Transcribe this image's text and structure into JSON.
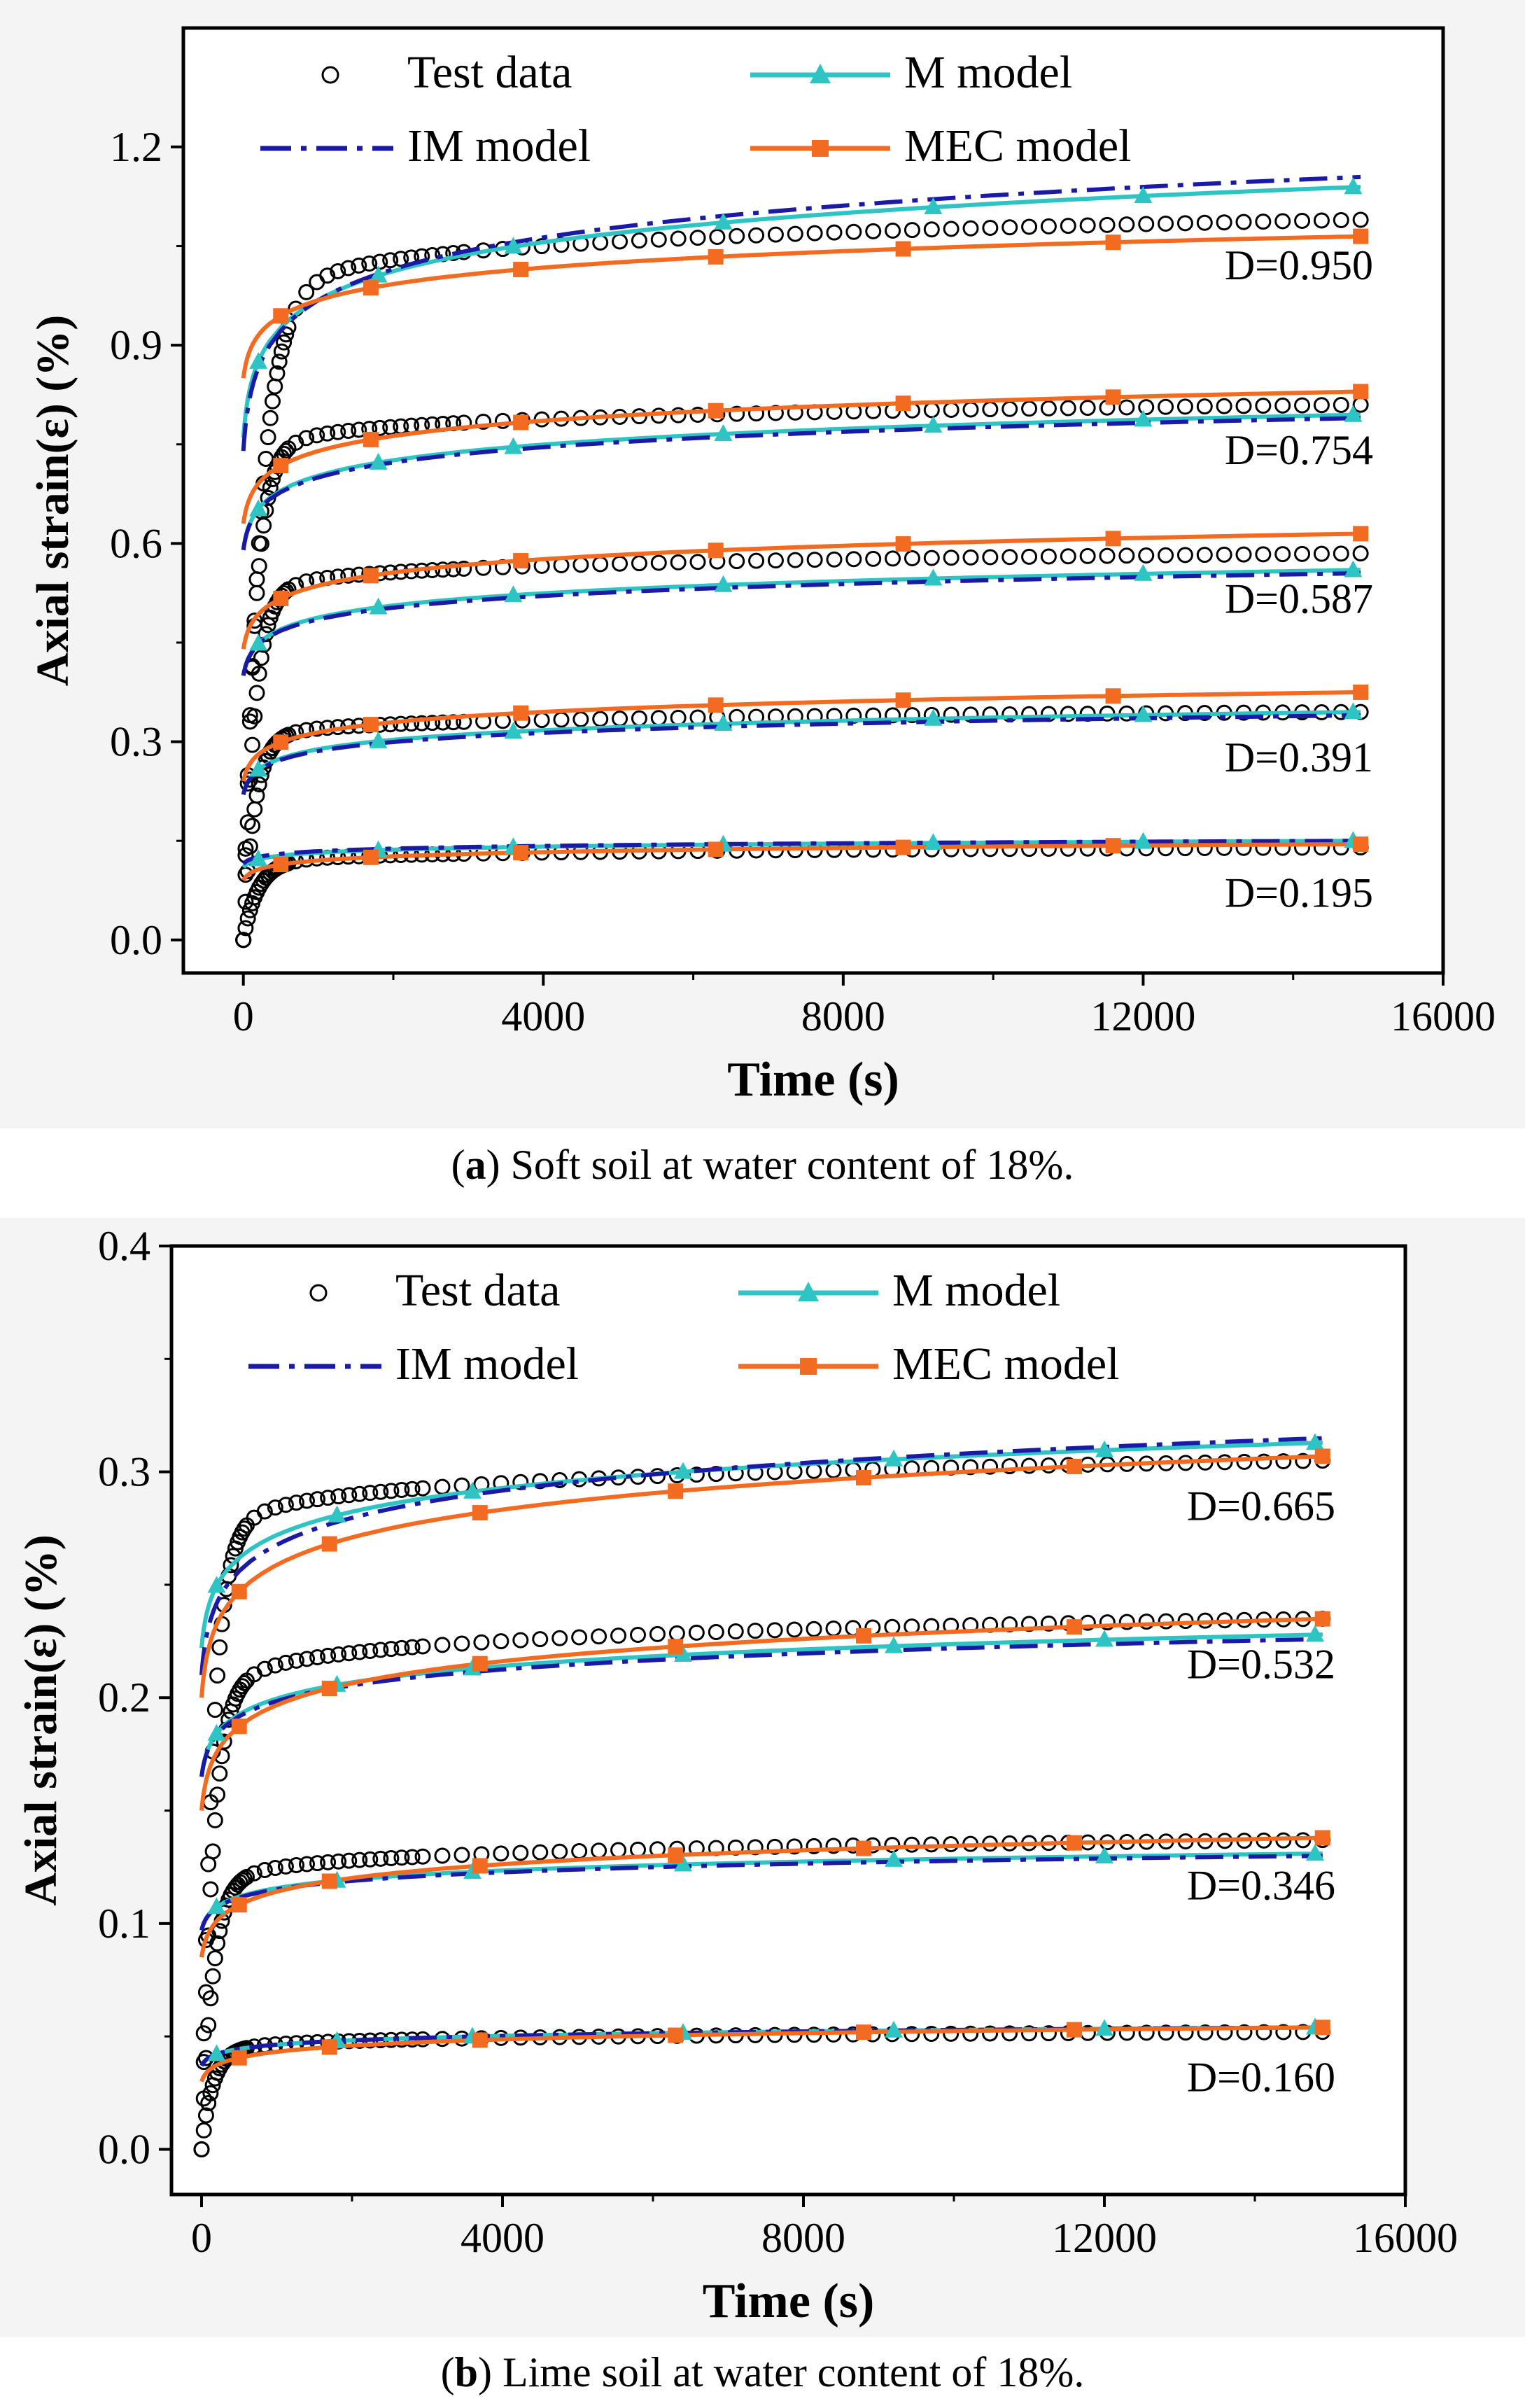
{
  "chart_data": [
    {
      "type": "line",
      "panel": "a",
      "xlabel": "Time (s)",
      "ylabel": "Axial strain(ε) (%)",
      "xlim": [
        -800,
        16000
      ],
      "ylim": [
        -0.05,
        1.38
      ],
      "xticks": [
        0,
        4000,
        8000,
        12000,
        16000
      ],
      "yticks": [
        0.0,
        0.3,
        0.6,
        0.9,
        1.2
      ],
      "xtick_labels": [
        "0",
        "4000",
        "8000",
        "12000",
        "16000"
      ],
      "ytick_labels": [
        "0.0",
        "0.3",
        "0.6",
        "0.9",
        "1.2"
      ],
      "legend_position": "top",
      "legend": {
        "test": "Test data",
        "m": "M model",
        "im": "IM model",
        "mec": "MEC model"
      },
      "colors": {
        "test": "#000000",
        "m": "#2ec4c4",
        "im": "#1a1aa6",
        "mec": "#f26b21"
      },
      "caption_label": "a",
      "caption_text": " Soft soil at water content of 18%.",
      "curves": [
        {
          "label": "D=0.950",
          "test_final": 1.09,
          "test_ref": 0.91,
          "test_t0": 230,
          "m": [
            0.76,
            1.14
          ],
          "im": [
            0.74,
            1.155
          ],
          "mec": [
            0.85,
            1.065
          ]
        },
        {
          "label": "D=0.754",
          "test_final": 0.81,
          "test_ref": 0.71,
          "test_t0": 150,
          "m": [
            0.59,
            0.795
          ],
          "im": [
            0.59,
            0.79
          ],
          "mec": [
            0.63,
            0.83
          ]
        },
        {
          "label": "D=0.587",
          "test_final": 0.585,
          "test_ref": 0.5,
          "test_t0": 150,
          "m": [
            0.4,
            0.56
          ],
          "im": [
            0.4,
            0.555
          ],
          "mec": [
            0.44,
            0.615
          ]
        },
        {
          "label": "D=0.391",
          "test_final": 0.345,
          "test_ref": 0.29,
          "test_t0": 150,
          "m": [
            0.22,
            0.345
          ],
          "im": [
            0.22,
            0.34
          ],
          "mec": [
            0.24,
            0.375
          ]
        },
        {
          "label": "D=0.195",
          "test_final": 0.14,
          "test_ref": 0.105,
          "test_t0": 200,
          "m": [
            0.11,
            0.15
          ],
          "im": [
            0.115,
            0.15
          ],
          "mec": [
            0.09,
            0.145
          ]
        }
      ]
    },
    {
      "type": "line",
      "panel": "b",
      "xlabel": "Time (s)",
      "ylabel": "Axial strain(ε) (%)",
      "xlim": [
        -400,
        16000
      ],
      "ylim": [
        -0.02,
        0.4
      ],
      "xticks": [
        0,
        4000,
        8000,
        12000,
        16000
      ],
      "yticks": [
        0.0,
        0.1,
        0.2,
        0.3,
        0.4
      ],
      "xtick_labels": [
        "0",
        "4000",
        "8000",
        "12000",
        "16000"
      ],
      "ytick_labels": [
        "0.0",
        "0.1",
        "0.2",
        "0.3",
        "0.4"
      ],
      "legend_position": "top",
      "legend": {
        "test": "Test data",
        "m": "M model",
        "im": "IM model",
        "mec": "MEC model"
      },
      "colors": {
        "test": "#000000",
        "m": "#2ec4c4",
        "im": "#1a1aa6",
        "mec": "#f26b21"
      },
      "caption_label": "b",
      "caption_text": " Lime soil at water content of 18%.",
      "curves": [
        {
          "label": "D=0.665",
          "test_final": 0.305,
          "test_ref": 0.26,
          "test_t0": 150,
          "m": [
            0.222,
            0.313
          ],
          "im": [
            0.21,
            0.315
          ],
          "mec": [
            0.2,
            0.307
          ]
        },
        {
          "label": "D=0.532",
          "test_final": 0.235,
          "test_ref": 0.19,
          "test_t0": 150,
          "m": [
            0.165,
            0.228
          ],
          "im": [
            0.165,
            0.226
          ],
          "mec": [
            0.15,
            0.235
          ]
        },
        {
          "label": "D=0.346",
          "test_final": 0.137,
          "test_ref": 0.11,
          "test_t0": 150,
          "m": [
            0.097,
            0.131
          ],
          "im": [
            0.097,
            0.13
          ],
          "mec": [
            0.085,
            0.138
          ]
        },
        {
          "label": "D=0.160",
          "test_final": 0.052,
          "test_ref": 0.04,
          "test_t0": 150,
          "m": [
            0.037,
            0.054
          ],
          "im": [
            0.037,
            0.054
          ],
          "mec": [
            0.03,
            0.054
          ]
        }
      ]
    }
  ]
}
